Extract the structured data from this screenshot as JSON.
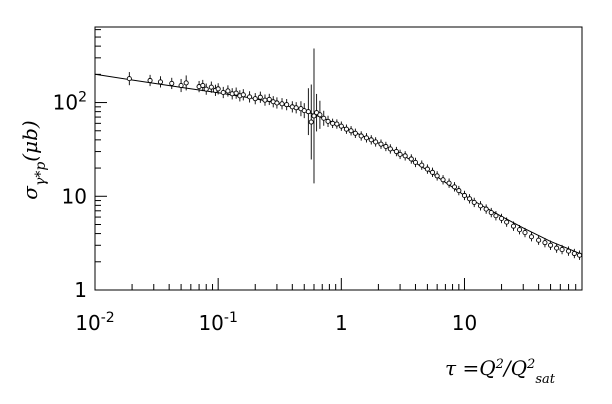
{
  "chart_data": {
    "type": "scatter",
    "title": "",
    "xlabel": "τ = Q²/Q²_sat",
    "ylabel": "σ_γ*p(μb)",
    "xscale": "log",
    "yscale": "log",
    "xlim": [
      0.01,
      90
    ],
    "ylim": [
      1,
      640
    ],
    "grid": false,
    "x_ticks": [
      {
        "value": 0.01,
        "base": "10",
        "exp": "-2",
        "text": ""
      },
      {
        "value": 0.1,
        "base": "10",
        "exp": "-1",
        "text": ""
      },
      {
        "value": 1,
        "base": "",
        "exp": "",
        "text": "1"
      },
      {
        "value": 10,
        "base": "",
        "exp": "",
        "text": "10"
      }
    ],
    "y_ticks": [
      {
        "value": 1,
        "base": "",
        "exp": "",
        "text": "1"
      },
      {
        "value": 10,
        "base": "",
        "exp": "",
        "text": "10"
      },
      {
        "value": 100,
        "base": "10",
        "exp": "2",
        "text": ""
      }
    ],
    "fit_curve": {
      "x": [
        0.01,
        0.02,
        0.05,
        0.1,
        0.2,
        0.3,
        0.5,
        0.8,
        1,
        1.5,
        2,
        3,
        5,
        8,
        10,
        15,
        20,
        30,
        50,
        70,
        90
      ],
      "y": [
        200,
        174,
        145,
        127,
        110,
        99,
        82,
        64,
        56,
        44,
        37,
        28.5,
        19,
        12.5,
        10.2,
        7.5,
        6.1,
        4.6,
        3.3,
        2.75,
        2.4
      ]
    },
    "series": [
      {
        "x": [
          0.019,
          0.028,
          0.034,
          0.042,
          0.05,
          0.055,
          0.07,
          0.075,
          0.08,
          0.088,
          0.095,
          0.1,
          0.11,
          0.12,
          0.13,
          0.14,
          0.15,
          0.16,
          0.18,
          0.2,
          0.22,
          0.24,
          0.26,
          0.28,
          0.3,
          0.33,
          0.36,
          0.4,
          0.43,
          0.47,
          0.5,
          0.54,
          0.57,
          0.6,
          0.63,
          0.67,
          0.72,
          0.78,
          0.85,
          0.92,
          1.0,
          1.1,
          1.2,
          1.3,
          1.45,
          1.6,
          1.75,
          1.9,
          2.1,
          2.3,
          2.5,
          2.8,
          3.0,
          3.3,
          3.7,
          4.0,
          4.5,
          5.0,
          5.5,
          6.0,
          6.7,
          7.5,
          8.3,
          9.0,
          10,
          11,
          12,
          13.5,
          15,
          16.5,
          18,
          20,
          22,
          25,
          28,
          31,
          35,
          40,
          45,
          50,
          56,
          62,
          70,
          78,
          86
        ],
        "y": [
          180,
          172,
          166,
          160,
          152,
          162,
          148,
          152,
          139,
          146,
          135,
          140,
          128,
          133,
          124,
          126,
          118,
          121,
          115,
          110,
          114,
          106,
          108,
          102,
          99,
          97,
          95,
          90,
          88,
          86,
          82,
          80,
          62,
          72,
          78,
          74,
          68,
          63,
          60,
          59,
          56,
          52,
          50,
          47,
          44,
          42,
          40,
          38,
          36,
          34,
          32,
          30,
          28,
          27,
          25,
          23,
          21.5,
          19.5,
          18,
          16.5,
          15,
          13.8,
          12.6,
          11.5,
          10.2,
          9.4,
          8.6,
          7.9,
          7.3,
          6.7,
          6.2,
          5.8,
          5.3,
          4.8,
          4.4,
          4.1,
          3.7,
          3.4,
          3.2,
          3.0,
          2.8,
          2.7,
          2.6,
          2.45,
          2.35
        ],
        "err": [
          0.07,
          0.06,
          0.06,
          0.06,
          0.07,
          0.08,
          0.06,
          0.06,
          0.06,
          0.06,
          0.06,
          0.06,
          0.06,
          0.06,
          0.06,
          0.06,
          0.06,
          0.06,
          0.06,
          0.06,
          0.06,
          0.06,
          0.06,
          0.06,
          0.06,
          0.06,
          0.06,
          0.06,
          0.06,
          0.08,
          0.08,
          0.25,
          0.4,
          0.72,
          0.2,
          0.15,
          0.08,
          0.06,
          0.05,
          0.05,
          0.05,
          0.05,
          0.05,
          0.05,
          0.05,
          0.05,
          0.05,
          0.05,
          0.05,
          0.05,
          0.05,
          0.05,
          0.05,
          0.05,
          0.05,
          0.05,
          0.05,
          0.05,
          0.05,
          0.05,
          0.05,
          0.05,
          0.05,
          0.05,
          0.05,
          0.05,
          0.05,
          0.05,
          0.05,
          0.05,
          0.05,
          0.05,
          0.05,
          0.05,
          0.05,
          0.05,
          0.05,
          0.05,
          0.05,
          0.05,
          0.05,
          0.05,
          0.05,
          0.05,
          0.05
        ]
      }
    ]
  }
}
